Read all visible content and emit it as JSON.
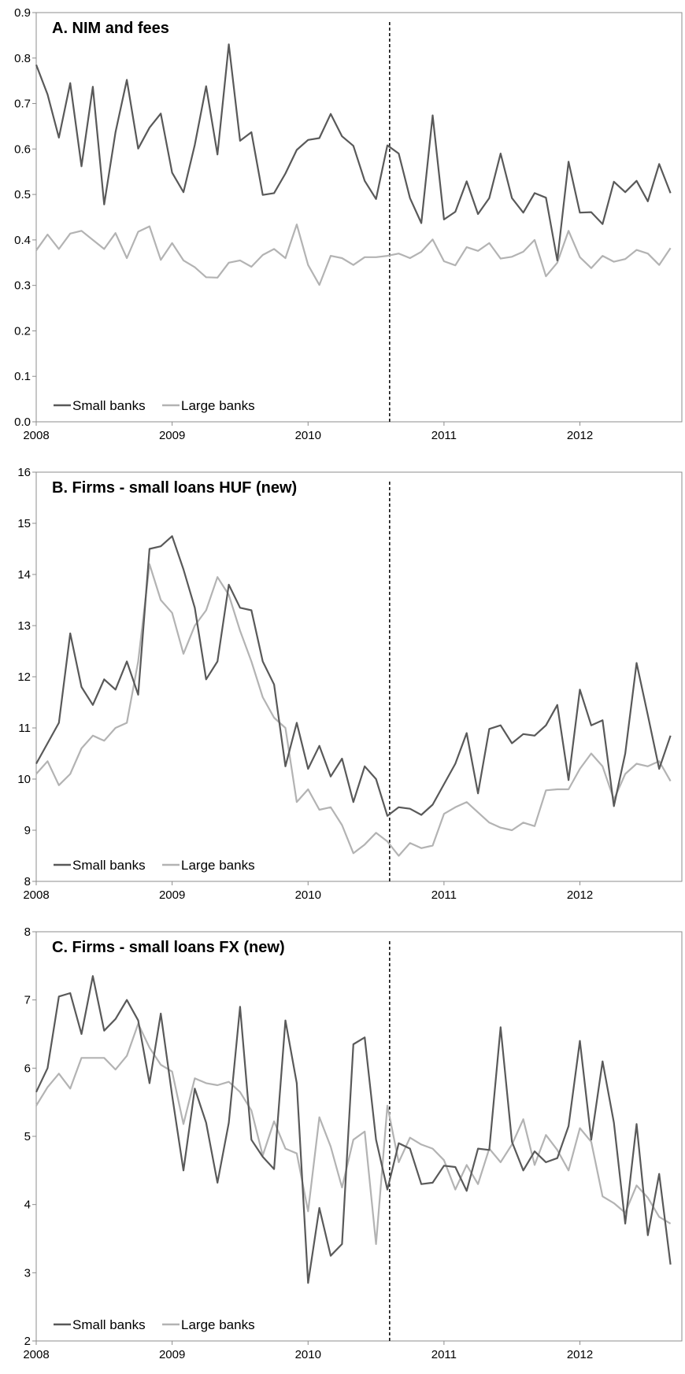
{
  "chart_data": [
    {
      "type": "line",
      "title": "A. NIM and fees",
      "xlabel": "",
      "ylabel": "",
      "xlim": [
        2008.0,
        2012.75
      ],
      "ylim": [
        0.0,
        0.9
      ],
      "yticks": [
        "0.0",
        "0.1",
        "0.2",
        "0.3",
        "0.4",
        "0.5",
        "0.6",
        "0.7",
        "0.8",
        "0.9"
      ],
      "xticks": [
        "2008",
        "2009",
        "2010",
        "2011",
        "2012"
      ],
      "vline_x": 2010.6,
      "legend_position": "bottom-left",
      "series": [
        {
          "name": "Small banks",
          "color": "#595959",
          "values": [
            0.785,
            0.72,
            0.625,
            0.745,
            0.562,
            0.737,
            0.478,
            0.637,
            0.752,
            0.601,
            0.647,
            0.678,
            0.548,
            0.505,
            0.609,
            0.738,
            0.588,
            0.83,
            0.618,
            0.637,
            0.499,
            0.503,
            0.546,
            0.598,
            0.62,
            0.624,
            0.677,
            0.628,
            0.607,
            0.53,
            0.49,
            0.608,
            0.59,
            0.492,
            0.437,
            0.674,
            0.445,
            0.462,
            0.529,
            0.457,
            0.492,
            0.59,
            0.492,
            0.46,
            0.503,
            0.493,
            0.355,
            0.572,
            0.46,
            0.461,
            0.435,
            0.528,
            0.505,
            0.53,
            0.485,
            0.567,
            0.503
          ]
        },
        {
          "name": "Large banks",
          "color": "#b3b3b3",
          "values": [
            0.377,
            0.412,
            0.38,
            0.414,
            0.42,
            0.4,
            0.38,
            0.415,
            0.36,
            0.418,
            0.43,
            0.356,
            0.393,
            0.355,
            0.34,
            0.318,
            0.317,
            0.35,
            0.355,
            0.341,
            0.367,
            0.38,
            0.36,
            0.434,
            0.345,
            0.301,
            0.365,
            0.36,
            0.345,
            0.362,
            0.362,
            0.365,
            0.37,
            0.36,
            0.374,
            0.401,
            0.353,
            0.344,
            0.384,
            0.376,
            0.393,
            0.359,
            0.363,
            0.374,
            0.4,
            0.32,
            0.35,
            0.42,
            0.362,
            0.338,
            0.365,
            0.352,
            0.358,
            0.378,
            0.37,
            0.345,
            0.382
          ]
        }
      ]
    },
    {
      "type": "line",
      "title": "B. Firms - small loans HUF (new)",
      "xlabel": "",
      "ylabel": "",
      "xlim": [
        2008.0,
        2012.75
      ],
      "ylim": [
        8,
        16
      ],
      "yticks": [
        "8",
        "9",
        "10",
        "11",
        "12",
        "13",
        "14",
        "15",
        "16"
      ],
      "xticks": [
        "2008",
        "2009",
        "2010",
        "2011",
        "2012"
      ],
      "vline_x": 2010.6,
      "legend_position": "bottom-left",
      "series": [
        {
          "name": "Small banks",
          "color": "#595959",
          "values": [
            10.3,
            10.7,
            11.1,
            12.85,
            11.8,
            11.45,
            11.95,
            11.75,
            12.3,
            11.65,
            14.5,
            14.55,
            14.75,
            14.1,
            13.35,
            11.95,
            12.3,
            13.8,
            13.35,
            13.3,
            12.3,
            11.85,
            10.25,
            11.1,
            10.2,
            10.65,
            10.05,
            10.4,
            9.55,
            10.25,
            10.0,
            9.28,
            9.45,
            9.42,
            9.3,
            9.5,
            9.9,
            10.3,
            10.9,
            9.72,
            10.98,
            11.05,
            10.7,
            10.88,
            10.85,
            11.05,
            11.45,
            9.98,
            11.75,
            11.05,
            11.15,
            9.47,
            10.5,
            12.27,
            11.25,
            10.2,
            10.85
          ]
        },
        {
          "name": "Large banks",
          "color": "#b3b3b3",
          "values": [
            10.1,
            10.35,
            9.88,
            10.1,
            10.6,
            10.85,
            10.75,
            11.0,
            11.1,
            12.3,
            14.2,
            13.5,
            13.25,
            12.45,
            13.0,
            13.3,
            13.95,
            13.6,
            12.9,
            12.3,
            11.6,
            11.2,
            11.0,
            9.55,
            9.8,
            9.4,
            9.45,
            9.1,
            8.55,
            8.72,
            8.95,
            8.78,
            8.5,
            8.75,
            8.65,
            8.7,
            9.32,
            9.45,
            9.55,
            9.35,
            9.15,
            9.05,
            9.0,
            9.15,
            9.08,
            9.78,
            9.8,
            9.8,
            10.2,
            10.5,
            10.25,
            9.6,
            10.1,
            10.3,
            10.25,
            10.35,
            9.96
          ]
        }
      ]
    },
    {
      "type": "line",
      "title": "C. Firms - small loans FX (new)",
      "xlabel": "",
      "ylabel": "",
      "xlim": [
        2008.0,
        2012.75
      ],
      "ylim": [
        2,
        8
      ],
      "yticks": [
        "2",
        "3",
        "4",
        "5",
        "6",
        "7",
        "8"
      ],
      "xticks": [
        "2008",
        "2009",
        "2010",
        "2011",
        "2012"
      ],
      "vline_x": 2010.6,
      "legend_position": "bottom-left",
      "series": [
        {
          "name": "Small banks",
          "color": "#595959",
          "values": [
            5.65,
            6.0,
            7.05,
            7.1,
            6.5,
            7.35,
            6.55,
            6.72,
            7.0,
            6.7,
            5.78,
            6.8,
            5.6,
            4.5,
            5.7,
            5.2,
            4.32,
            5.2,
            6.9,
            4.95,
            4.7,
            4.52,
            6.7,
            5.78,
            2.85,
            3.95,
            3.25,
            3.42,
            6.35,
            6.45,
            4.95,
            4.22,
            4.9,
            4.82,
            4.3,
            4.32,
            4.57,
            4.55,
            4.2,
            4.82,
            4.8,
            6.6,
            4.92,
            4.5,
            4.78,
            4.62,
            4.68,
            5.15,
            6.4,
            4.95,
            6.1,
            5.2,
            3.72,
            5.18,
            3.55,
            4.45,
            3.12
          ]
        },
        {
          "name": "Large banks",
          "color": "#b3b3b3",
          "values": [
            5.45,
            5.72,
            5.92,
            5.7,
            6.15,
            6.15,
            6.15,
            5.98,
            6.18,
            6.65,
            6.3,
            6.05,
            5.95,
            5.18,
            5.85,
            5.78,
            5.75,
            5.8,
            5.65,
            5.38,
            4.72,
            5.22,
            4.82,
            4.75,
            3.9,
            5.28,
            4.85,
            4.25,
            4.95,
            5.07,
            3.42,
            5.45,
            4.62,
            4.98,
            4.88,
            4.82,
            4.65,
            4.22,
            4.58,
            4.3,
            4.82,
            4.62,
            4.88,
            5.25,
            4.58,
            5.02,
            4.8,
            4.5,
            5.12,
            4.92,
            4.12,
            4.02,
            3.88,
            4.28,
            4.1,
            3.82,
            3.72
          ]
        }
      ]
    }
  ]
}
